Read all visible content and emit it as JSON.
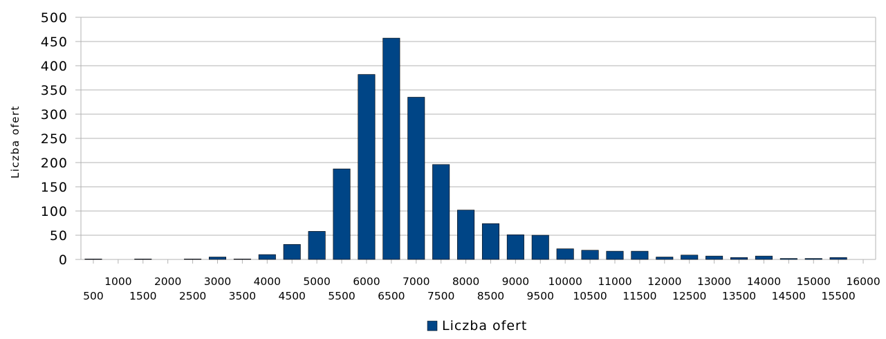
{
  "chart_data": {
    "type": "bar",
    "title": "",
    "xlabel": "",
    "ylabel": "Liczba ofert",
    "ylim": [
      0,
      500
    ],
    "yticks": [
      0,
      50,
      100,
      150,
      200,
      250,
      300,
      350,
      400,
      450,
      500
    ],
    "grid": true,
    "legend_position": "bottom",
    "bar_color": "#004586",
    "categories": [
      "500",
      "1000",
      "1500",
      "2000",
      "2500",
      "3000",
      "3500",
      "4000",
      "4500",
      "5000",
      "5500",
      "6000",
      "6500",
      "7000",
      "7500",
      "8000",
      "8500",
      "9000",
      "9500",
      "10000",
      "10500",
      "11000",
      "11500",
      "12000",
      "12500",
      "13000",
      "13500",
      "14000",
      "14500",
      "15000",
      "15500",
      "16000"
    ],
    "series": [
      {
        "name": "Liczba ofert",
        "values": [
          1,
          0,
          1,
          0,
          1,
          5,
          1,
          10,
          31,
          58,
          187,
          382,
          457,
          335,
          196,
          102,
          74,
          51,
          50,
          22,
          19,
          17,
          17,
          5,
          9,
          7,
          4,
          7,
          2,
          2,
          4,
          0
        ]
      }
    ]
  }
}
